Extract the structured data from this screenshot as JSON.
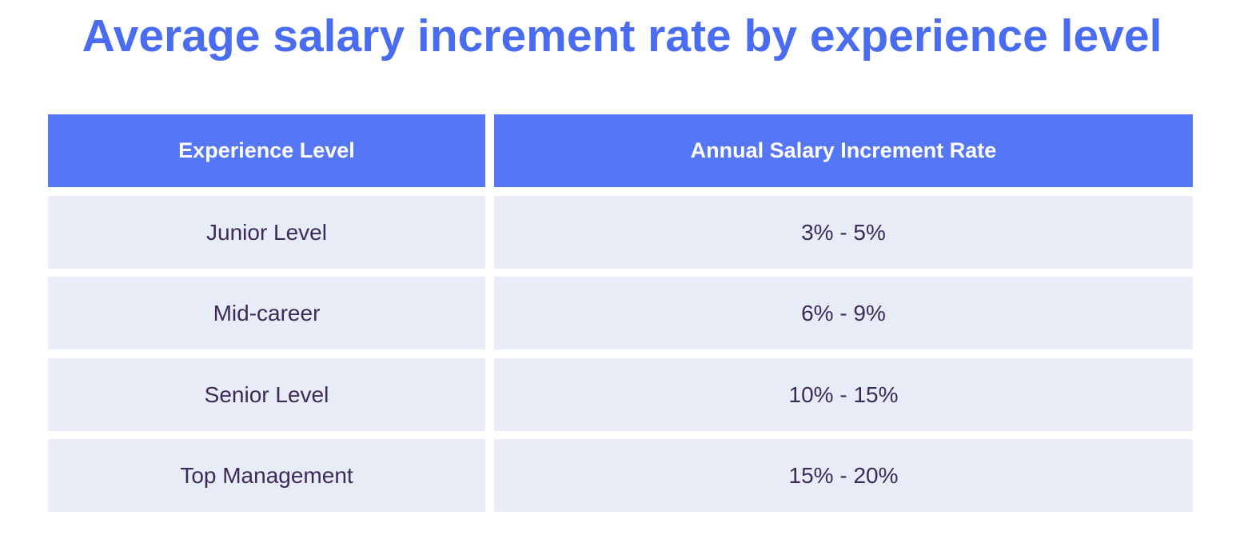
{
  "chart_data": {
    "type": "table",
    "title": "Average salary increment rate by experience level",
    "columns": [
      "Experience Level",
      "Annual Salary Increment Rate"
    ],
    "rows": [
      [
        "Junior Level",
        "3% - 5%"
      ],
      [
        "Mid-career",
        "6% - 9%"
      ],
      [
        "Senior Level",
        "10% - 15%"
      ],
      [
        "Top Management",
        "15% - 20%"
      ]
    ],
    "colors": {
      "title": "#4a6cf0",
      "header_fill": "#5677f5",
      "header_text": "#ffffff",
      "cell_fill": "#e8ecf6",
      "cell_text": "#3c2a5c"
    }
  }
}
